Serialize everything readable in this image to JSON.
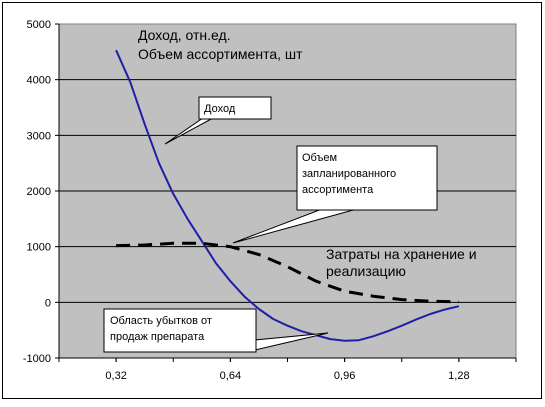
{
  "chart_data": {
    "type": "line",
    "title_lines": [
      "Доход, отн.ед.",
      "Объем ассортимента, шт"
    ],
    "xlim": [
      0.16,
      1.44
    ],
    "ylim": [
      -1000,
      5000
    ],
    "x_ticks": [
      0.32,
      0.64,
      0.96,
      1.28
    ],
    "x_tick_labels": [
      "0,32",
      "0,64",
      "0,96",
      "1,28"
    ],
    "y_ticks": [
      -1000,
      0,
      1000,
      2000,
      3000,
      4000,
      5000
    ],
    "y_tick_labels": [
      "-1000",
      "0",
      "1000",
      "2000",
      "3000",
      "4000",
      "5000"
    ],
    "grid": "horizontal",
    "plot_background": "#c0c0c0",
    "series": [
      {
        "name": "Доход",
        "style": "solid",
        "color": "#1f1fa8",
        "x": [
          0.32,
          0.36,
          0.4,
          0.44,
          0.48,
          0.52,
          0.56,
          0.6,
          0.64,
          0.68,
          0.72,
          0.76,
          0.8,
          0.84,
          0.88,
          0.92,
          0.96,
          1.0,
          1.04,
          1.08,
          1.12,
          1.16,
          1.2,
          1.24,
          1.28
        ],
        "y": [
          4530,
          3950,
          3200,
          2500,
          1950,
          1500,
          1100,
          700,
          380,
          100,
          -120,
          -300,
          -420,
          -520,
          -590,
          -660,
          -690,
          -680,
          -610,
          -520,
          -420,
          -310,
          -210,
          -130,
          -70
        ]
      },
      {
        "name": "Затраты на хранение и реализацию",
        "style": "dashed",
        "color": "#000000",
        "x": [
          0.32,
          0.4,
          0.48,
          0.56,
          0.64,
          0.72,
          0.8,
          0.88,
          0.96,
          1.04,
          1.12,
          1.2,
          1.28
        ],
        "y": [
          1020,
          1030,
          1060,
          1060,
          1000,
          860,
          640,
          380,
          200,
          110,
          50,
          20,
          10
        ]
      }
    ],
    "annotations": [
      {
        "id": "dohod",
        "lines": [
          "Доход"
        ]
      },
      {
        "id": "plan",
        "lines": [
          "Объем",
          "запланированного",
          "ассортимента"
        ]
      },
      {
        "id": "zatraty",
        "lines": [
          "Затраты на хранение и",
          "реализацию"
        ]
      },
      {
        "id": "loss",
        "lines": [
          "Область убытков от",
          "продаж препарата"
        ]
      }
    ]
  }
}
